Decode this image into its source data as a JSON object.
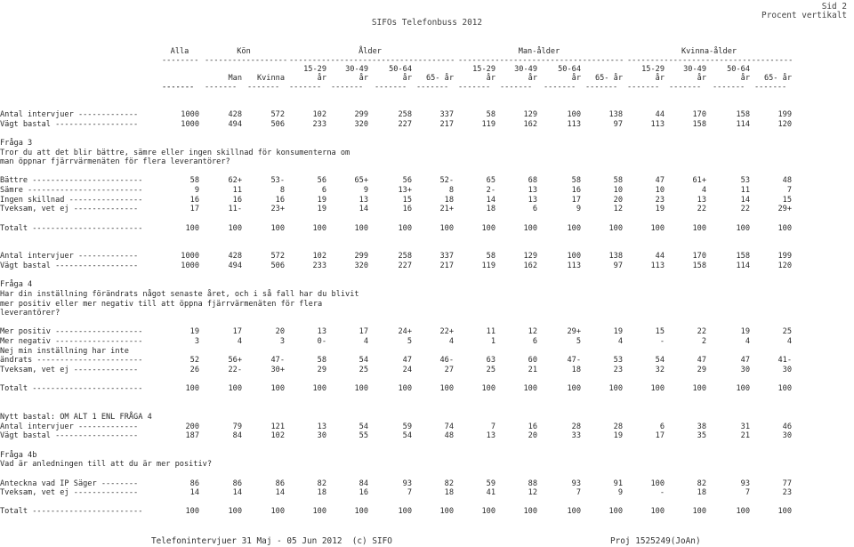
{
  "header": {
    "title": "SIFOs Telefonbuss 2012",
    "page": "Sid 2",
    "mode": "Procent vertikalt"
  },
  "columns": {
    "groups": [
      "Alla",
      "Kön",
      "Ålder",
      "Man-ålder",
      "Kvinna-ålder"
    ],
    "top": [
      "",
      "",
      "",
      "15-29",
      "30-49",
      "50-64",
      "",
      "15-29",
      "30-49",
      "50-64",
      "",
      "15-29",
      "30-49",
      "50-64",
      ""
    ],
    "bottom": [
      "",
      "Man",
      "Kvinna",
      "år",
      "år",
      "år",
      "65- år",
      "år",
      "år",
      "år",
      "65- år",
      "år",
      "år",
      "år",
      "65- år"
    ]
  },
  "rows": [
    {
      "type": "data",
      "label": "Antal intervjuer -------------",
      "values": [
        "1000",
        "428",
        "572",
        "102",
        "299",
        "258",
        "337",
        "58",
        "129",
        "100",
        "138",
        "44",
        "170",
        "158",
        "199"
      ]
    },
    {
      "type": "data",
      "label": "Vägt bastal ------------------",
      "values": [
        "1000",
        "494",
        "506",
        "233",
        "320",
        "227",
        "217",
        "119",
        "162",
        "113",
        "97",
        "113",
        "158",
        "114",
        "120"
      ]
    },
    {
      "type": "blank"
    },
    {
      "type": "text",
      "text": "Fråga 3"
    },
    {
      "type": "text",
      "text": "Tror du att det blir bättre, sämre eller ingen skillnad för konsumenterna om"
    },
    {
      "type": "text",
      "text": "man öppnar fjärrvärmenäten för flera leverantörer?"
    },
    {
      "type": "blank"
    },
    {
      "type": "data",
      "label": "Bättre ------------------------",
      "values": [
        "58",
        "62+",
        "53-",
        "56",
        "65+",
        "56",
        "52-",
        "65",
        "68",
        "58",
        "58",
        "47",
        "61+",
        "53",
        "48"
      ]
    },
    {
      "type": "data",
      "label": "Sämre -------------------------",
      "values": [
        "9",
        "11",
        "8",
        "6",
        "9",
        "13+",
        "8",
        "2-",
        "13",
        "16",
        "10",
        "10",
        "4",
        "11",
        "7"
      ]
    },
    {
      "type": "data",
      "label": "Ingen skillnad ----------------",
      "values": [
        "16",
        "16",
        "16",
        "19",
        "13",
        "15",
        "18",
        "14",
        "13",
        "17",
        "20",
        "23",
        "13",
        "14",
        "15"
      ]
    },
    {
      "type": "data",
      "label": "Tveksam, vet ej --------------",
      "values": [
        "17",
        "11-",
        "23+",
        "19",
        "14",
        "16",
        "21+",
        "18",
        "6",
        "9",
        "12",
        "19",
        "22",
        "22",
        "29+"
      ]
    },
    {
      "type": "blank"
    },
    {
      "type": "data",
      "label": "Totalt ------------------------",
      "values": [
        "100",
        "100",
        "100",
        "100",
        "100",
        "100",
        "100",
        "100",
        "100",
        "100",
        "100",
        "100",
        "100",
        "100",
        "100"
      ]
    },
    {
      "type": "blank"
    },
    {
      "type": "blank"
    },
    {
      "type": "data",
      "label": "Antal intervjuer -------------",
      "values": [
        "1000",
        "428",
        "572",
        "102",
        "299",
        "258",
        "337",
        "58",
        "129",
        "100",
        "138",
        "44",
        "170",
        "158",
        "199"
      ]
    },
    {
      "type": "data",
      "label": "Vägt bastal ------------------",
      "values": [
        "1000",
        "494",
        "506",
        "233",
        "320",
        "227",
        "217",
        "119",
        "162",
        "113",
        "97",
        "113",
        "158",
        "114",
        "120"
      ]
    },
    {
      "type": "blank"
    },
    {
      "type": "text",
      "text": "Fråga 4"
    },
    {
      "type": "text",
      "text": "Har din inställning förändrats något senaste året, och i så fall har du blivit"
    },
    {
      "type": "text",
      "text": "mer positiv eller mer negativ till att öppna fjärrvärmenäten för flera"
    },
    {
      "type": "text",
      "text": "leverantörer?"
    },
    {
      "type": "blank"
    },
    {
      "type": "data",
      "label": "Mer positiv -------------------",
      "values": [
        "19",
        "17",
        "20",
        "13",
        "17",
        "24+",
        "22+",
        "11",
        "12",
        "29+",
        "19",
        "15",
        "22",
        "19",
        "25"
      ]
    },
    {
      "type": "data",
      "label": "Mer negativ -------------------",
      "values": [
        "3",
        "4",
        "3",
        "0-",
        "4",
        "5",
        "4",
        "1",
        "6",
        "5",
        "4",
        "-",
        "2",
        "4",
        "4"
      ]
    },
    {
      "type": "text",
      "text": "Nej min inställning har inte"
    },
    {
      "type": "data",
      "label": "ändrats -----------------------",
      "values": [
        "52",
        "56+",
        "47-",
        "58",
        "54",
        "47",
        "46-",
        "63",
        "60",
        "47-",
        "53",
        "54",
        "47",
        "47",
        "41-"
      ]
    },
    {
      "type": "data",
      "label": "Tveksam, vet ej --------------",
      "values": [
        "26",
        "22-",
        "30+",
        "29",
        "25",
        "24",
        "27",
        "25",
        "21",
        "18",
        "23",
        "32",
        "29",
        "30",
        "30"
      ]
    },
    {
      "type": "blank"
    },
    {
      "type": "data",
      "label": "Totalt ------------------------",
      "values": [
        "100",
        "100",
        "100",
        "100",
        "100",
        "100",
        "100",
        "100",
        "100",
        "100",
        "100",
        "100",
        "100",
        "100",
        "100"
      ]
    },
    {
      "type": "blank"
    },
    {
      "type": "blank"
    },
    {
      "type": "text",
      "text": "Nytt bastal: OM ALT 1 ENL FRÅGA 4"
    },
    {
      "type": "data",
      "label": "Antal intervjuer -------------",
      "values": [
        "200",
        "79",
        "121",
        "13",
        "54",
        "59",
        "74",
        "7",
        "16",
        "28",
        "28",
        "6",
        "38",
        "31",
        "46"
      ]
    },
    {
      "type": "data",
      "label": "Vägt bastal ------------------",
      "values": [
        "187",
        "84",
        "102",
        "30",
        "55",
        "54",
        "48",
        "13",
        "20",
        "33",
        "19",
        "17",
        "35",
        "21",
        "30"
      ]
    },
    {
      "type": "blank"
    },
    {
      "type": "text",
      "text": "Fråga 4b"
    },
    {
      "type": "text",
      "text": "Vad är anledningen till att du är mer positiv?"
    },
    {
      "type": "blank"
    },
    {
      "type": "data",
      "label": "Anteckna vad IP Säger --------",
      "values": [
        "86",
        "86",
        "86",
        "82",
        "84",
        "93",
        "82",
        "59",
        "88",
        "93",
        "91",
        "100",
        "82",
        "93",
        "77"
      ]
    },
    {
      "type": "data",
      "label": "Tveksam, vet ej --------------",
      "values": [
        "14",
        "14",
        "14",
        "18",
        "16",
        "7",
        "18",
        "41",
        "12",
        "7",
        "9",
        "-",
        "18",
        "7",
        "23"
      ]
    },
    {
      "type": "blank"
    },
    {
      "type": "data",
      "label": "Totalt ------------------------",
      "values": [
        "100",
        "100",
        "100",
        "100",
        "100",
        "100",
        "100",
        "100",
        "100",
        "100",
        "100",
        "100",
        "100",
        "100",
        "100"
      ]
    }
  ],
  "footer": {
    "left": "Telefonintervjuer 31 Maj - 05 Jun 2012  (c) SIFO",
    "right": "Proj 1525249(JoAn)"
  }
}
